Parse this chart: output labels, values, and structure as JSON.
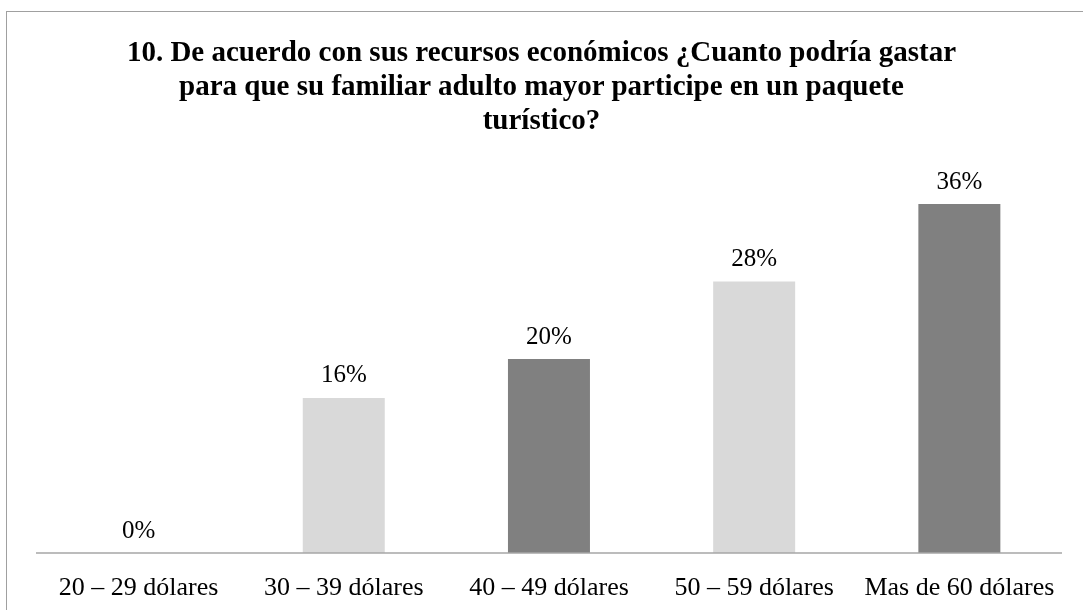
{
  "chart_data": {
    "type": "bar",
    "title": "10. De acuerdo con sus recursos económicos ¿Cuanto podría gastar para que su familiar adulto mayor participe en un paquete turístico?",
    "categories": [
      "20 – 29 dólares",
      "30 – 39 dólares",
      "40 – 49 dólares",
      "50 – 59 dólares",
      "Mas de 60 dólares"
    ],
    "values": [
      0,
      16,
      20,
      28,
      36
    ],
    "colors": [
      "#808080",
      "#d9d9d9",
      "#808080",
      "#d9d9d9",
      "#808080"
    ],
    "value_labels": [
      "0%",
      "16%",
      "20%",
      "28%",
      "36%"
    ]
  }
}
